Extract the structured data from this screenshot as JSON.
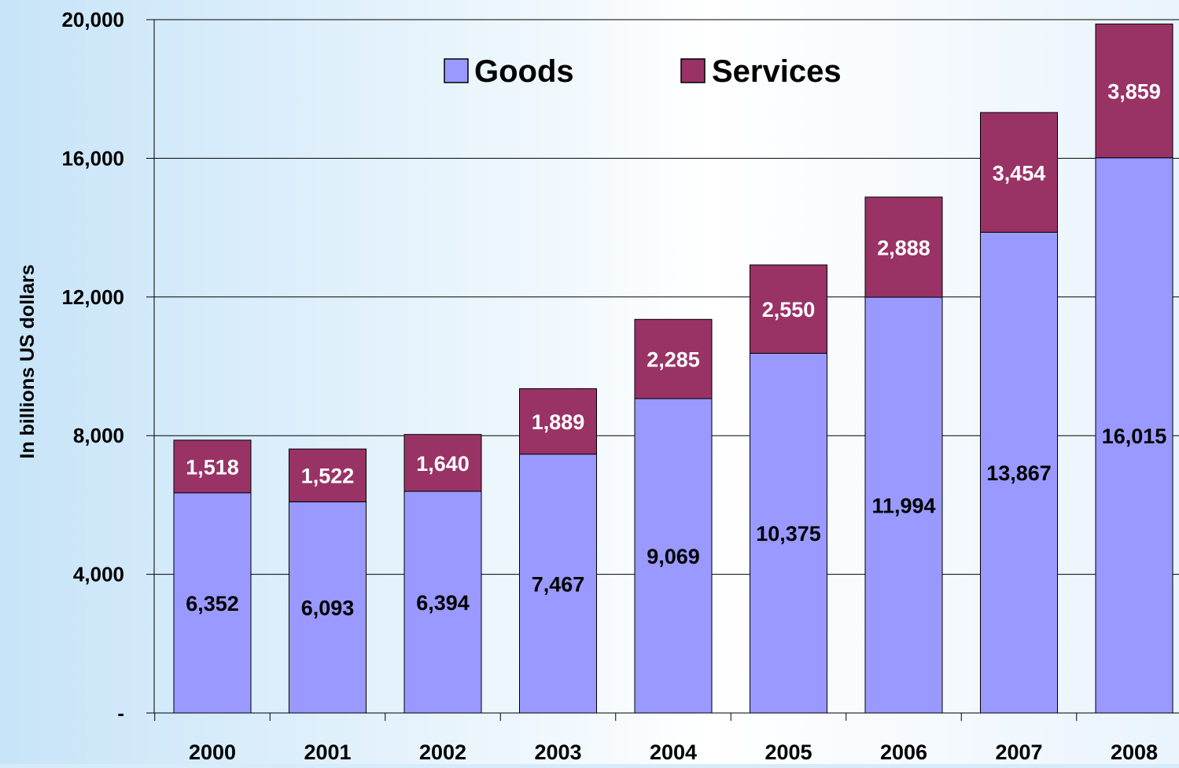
{
  "chart_data": {
    "type": "bar",
    "stacked": true,
    "categories": [
      "2000",
      "2001",
      "2002",
      "2003",
      "2004",
      "2005",
      "2006",
      "2007",
      "2008"
    ],
    "series": [
      {
        "name": "Goods",
        "color": "#9999ff",
        "values": [
          6352,
          6093,
          6394,
          7467,
          9069,
          10375,
          11994,
          13867,
          16015
        ],
        "labels": [
          "6,352",
          "6,093",
          "6,394",
          "7,467",
          "9,069",
          "10,375",
          "11,994",
          "13,867",
          "16,015"
        ],
        "label_color": "#000000"
      },
      {
        "name": "Services",
        "color": "#993366",
        "values": [
          1518,
          1522,
          1640,
          1889,
          2285,
          2550,
          2888,
          3454,
          3859
        ],
        "labels": [
          "1,518",
          "1,522",
          "1,640",
          "1,889",
          "2,285",
          "2,550",
          "2,888",
          "3,454",
          "3,859"
        ],
        "label_color": "#ffffff"
      }
    ],
    "ylabel": "In billions US dollars",
    "ylim": [
      0,
      20000
    ],
    "yticks": [
      0,
      4000,
      8000,
      12000,
      16000,
      20000
    ],
    "ytick_labels": [
      "-",
      "4,000",
      "8,000",
      "12,000",
      "16,000",
      "20,000"
    ],
    "grid": true,
    "legend_position": "top-center"
  }
}
